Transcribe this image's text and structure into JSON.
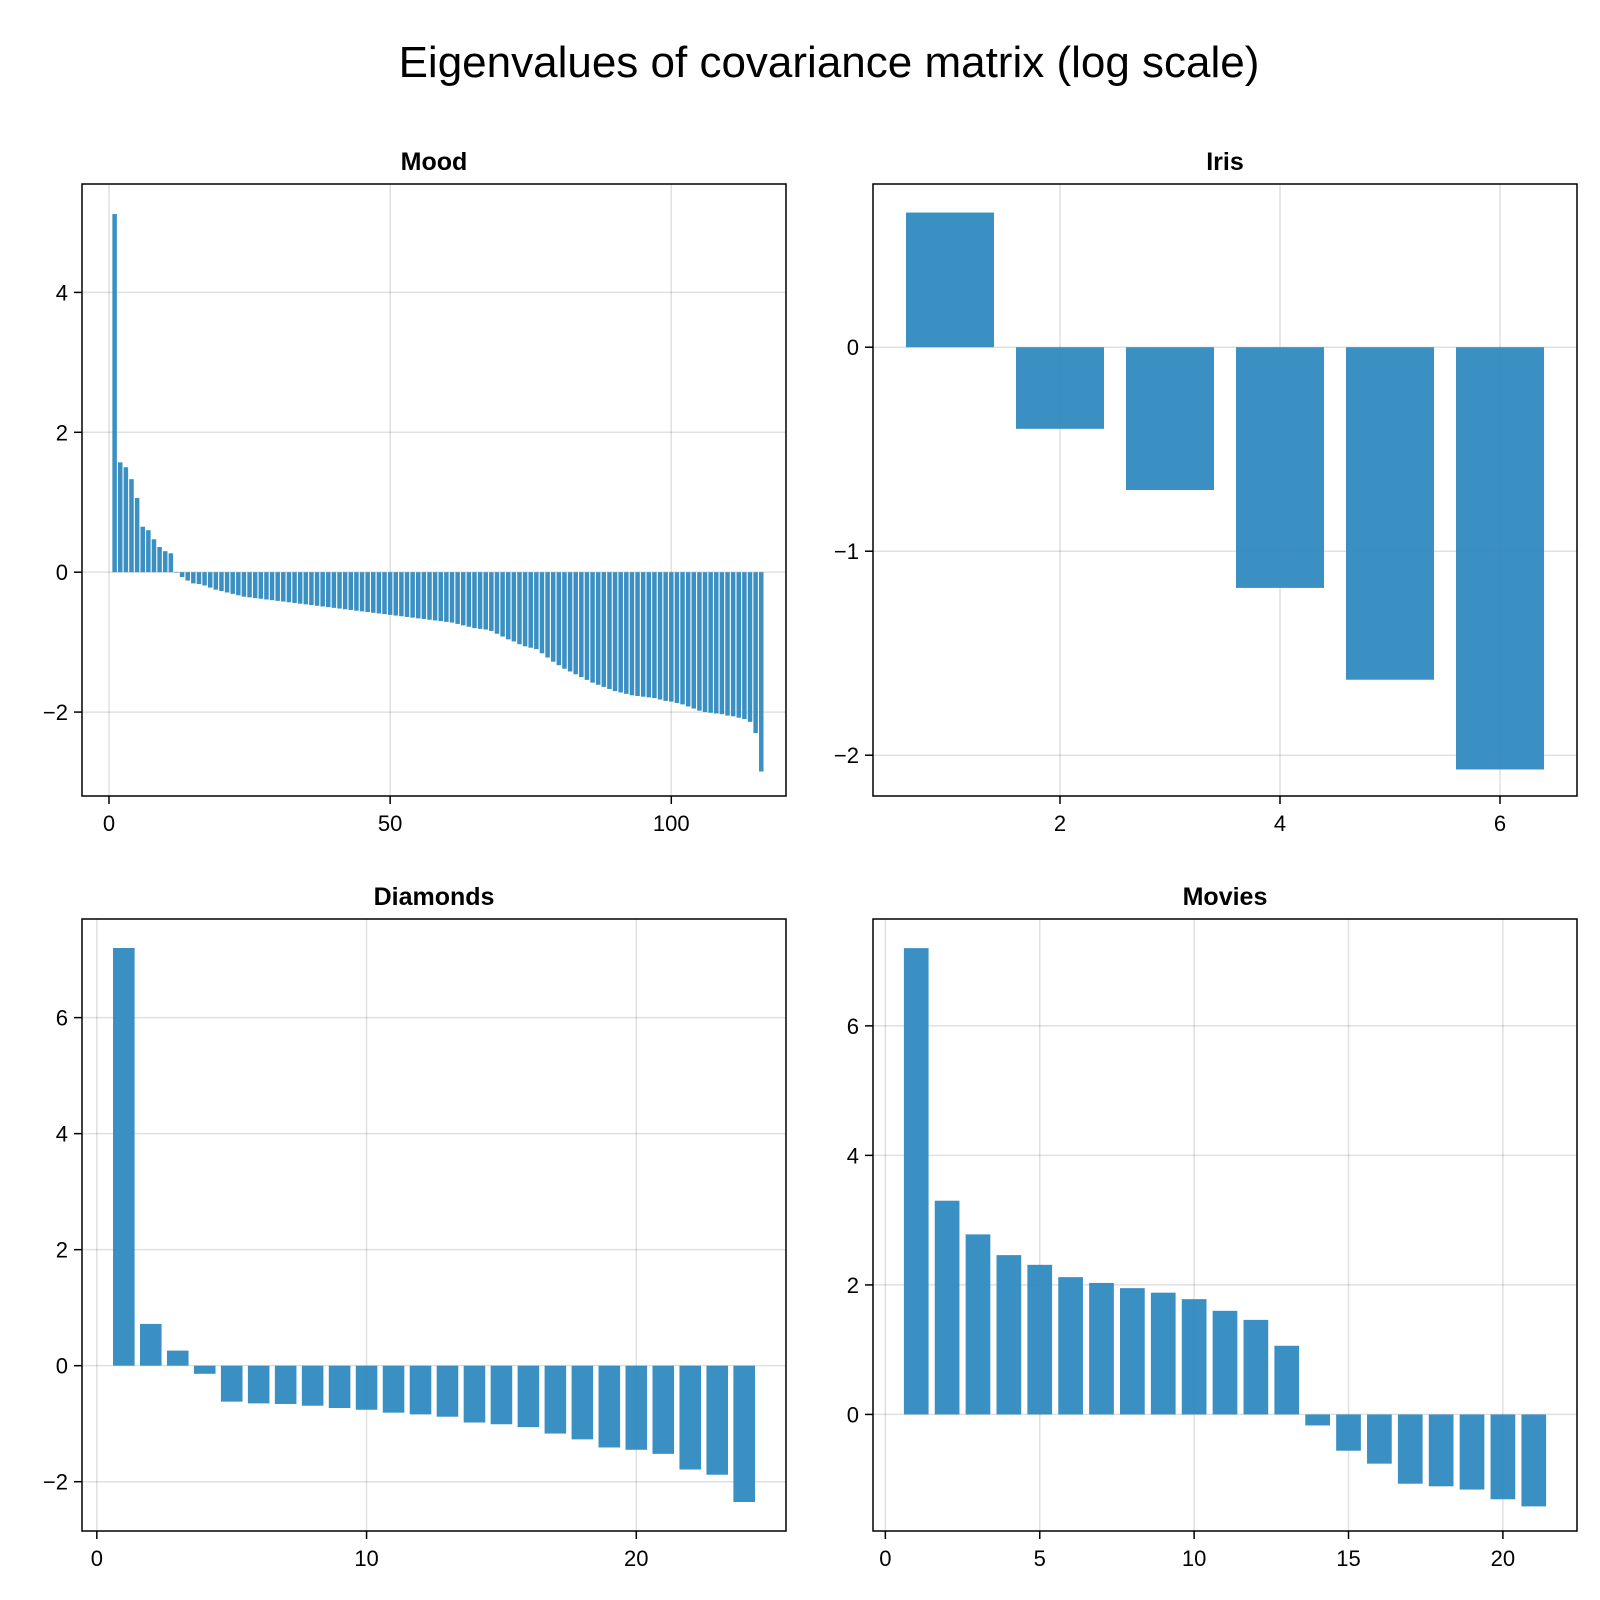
{
  "figure": {
    "title": "Eigenvalues of covariance matrix (log scale)",
    "bar_color": "#2f89c0"
  },
  "chart_data": [
    {
      "type": "bar",
      "title": "Mood",
      "xlabel": "",
      "ylabel": "",
      "x_start": 1,
      "xlim": [
        -4.8,
        120.4
      ],
      "ylim": [
        -3.2,
        5.55
      ],
      "xticks": [
        0,
        50,
        100
      ],
      "yticks": [
        -2,
        0,
        2,
        4
      ],
      "grid": true,
      "values": [
        5.12,
        1.57,
        1.5,
        1.33,
        1.06,
        0.65,
        0.6,
        0.47,
        0.36,
        0.3,
        0.27,
        0.0,
        -0.07,
        -0.12,
        -0.16,
        -0.17,
        -0.19,
        -0.22,
        -0.25,
        -0.27,
        -0.29,
        -0.31,
        -0.33,
        -0.35,
        -0.36,
        -0.37,
        -0.38,
        -0.39,
        -0.4,
        -0.41,
        -0.42,
        -0.43,
        -0.44,
        -0.45,
        -0.46,
        -0.47,
        -0.48,
        -0.49,
        -0.5,
        -0.51,
        -0.52,
        -0.53,
        -0.54,
        -0.55,
        -0.56,
        -0.57,
        -0.58,
        -0.59,
        -0.6,
        -0.61,
        -0.62,
        -0.63,
        -0.64,
        -0.65,
        -0.66,
        -0.67,
        -0.68,
        -0.69,
        -0.7,
        -0.71,
        -0.72,
        -0.74,
        -0.76,
        -0.78,
        -0.8,
        -0.81,
        -0.82,
        -0.84,
        -0.88,
        -0.92,
        -0.96,
        -0.99,
        -1.03,
        -1.06,
        -1.08,
        -1.1,
        -1.16,
        -1.22,
        -1.28,
        -1.33,
        -1.38,
        -1.42,
        -1.46,
        -1.5,
        -1.54,
        -1.58,
        -1.61,
        -1.64,
        -1.67,
        -1.7,
        -1.72,
        -1.74,
        -1.76,
        -1.77,
        -1.78,
        -1.79,
        -1.8,
        -1.82,
        -1.84,
        -1.85,
        -1.87,
        -1.89,
        -1.92,
        -1.95,
        -1.98,
        -2.0,
        -2.01,
        -2.02,
        -2.03,
        -2.05,
        -2.06,
        -2.08,
        -2.1,
        -2.14,
        -2.3,
        -2.85
      ]
    },
    {
      "type": "bar",
      "title": "Iris",
      "xlabel": "",
      "ylabel": "",
      "x_start": 1,
      "xlim": [
        0.3,
        6.7
      ],
      "ylim": [
        -2.2,
        0.8
      ],
      "xticks": [
        2,
        4,
        6
      ],
      "yticks": [
        -2,
        -1,
        0
      ],
      "grid": true,
      "values": [
        0.66,
        -0.4,
        -0.7,
        -1.18,
        -1.63,
        -2.07
      ]
    },
    {
      "type": "bar",
      "title": "Diamonds",
      "xlabel": "",
      "ylabel": "",
      "x_start": 1,
      "xlim": [
        -0.55,
        25.55
      ],
      "ylim": [
        -2.85,
        7.7
      ],
      "xticks": [
        0,
        10,
        20
      ],
      "yticks": [
        -2,
        0,
        2,
        4,
        6
      ],
      "grid": true,
      "values": [
        7.2,
        0.72,
        0.26,
        -0.14,
        -0.62,
        -0.65,
        -0.66,
        -0.69,
        -0.73,
        -0.76,
        -0.81,
        -0.84,
        -0.88,
        -0.98,
        -1.01,
        -1.06,
        -1.17,
        -1.27,
        -1.41,
        -1.45,
        -1.52,
        -1.79,
        -1.88,
        -2.35
      ]
    },
    {
      "type": "bar",
      "title": "Movies",
      "xlabel": "",
      "ylabel": "",
      "x_start": 1,
      "xlim": [
        -0.4,
        22.4
      ],
      "ylim": [
        -1.8,
        7.65
      ],
      "xticks": [
        0,
        5,
        10,
        15,
        20
      ],
      "yticks": [
        0,
        2,
        4,
        6
      ],
      "grid": true,
      "values": [
        7.2,
        3.3,
        2.78,
        2.46,
        2.31,
        2.12,
        2.03,
        1.95,
        1.88,
        1.78,
        1.6,
        1.46,
        1.06,
        -0.17,
        -0.56,
        -0.76,
        -1.07,
        -1.11,
        -1.16,
        -1.31,
        -1.42
      ]
    }
  ]
}
